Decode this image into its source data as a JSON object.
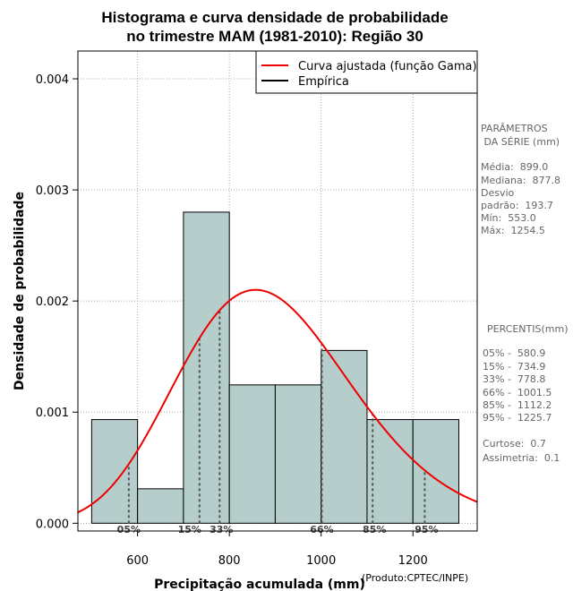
{
  "chart_data": {
    "type": "histogram",
    "title_lines": [
      "Histograma e curva densidade de probabilidade",
      "no trimestre MAM (1981-2010): Região 30"
    ],
    "xlabel": "Precipitação acumulada (mm)",
    "ylabel": "Densidade de probabilidade",
    "credit": "(Produto:CPTEC/INPE)",
    "xlim": [
      470,
      1340
    ],
    "ylim": [
      -7e-05,
      0.00425
    ],
    "x_ticks": [
      {
        "value": 600,
        "label": "600"
      },
      {
        "value": 800,
        "label": "800"
      },
      {
        "value": 1000,
        "label": "1000"
      },
      {
        "value": 1200,
        "label": "1200"
      }
    ],
    "y_ticks": [
      {
        "value": 0.0,
        "label": "0.000"
      },
      {
        "value": 0.001,
        "label": "0.001"
      },
      {
        "value": 0.002,
        "label": "0.002"
      },
      {
        "value": 0.003,
        "label": "0.003"
      },
      {
        "value": 0.004,
        "label": "0.004"
      }
    ],
    "grid": true,
    "bars": [
      {
        "x0": 500,
        "x1": 600,
        "density": 0.000933
      },
      {
        "x0": 600,
        "x1": 700,
        "density": 0.00031
      },
      {
        "x0": 700,
        "x1": 800,
        "density": 0.0028
      },
      {
        "x0": 800,
        "x1": 900,
        "density": 0.001245
      },
      {
        "x0": 900,
        "x1": 1000,
        "density": 0.001245
      },
      {
        "x0": 1000,
        "x1": 1100,
        "density": 0.001555
      },
      {
        "x0": 1100,
        "x1": 1200,
        "density": 0.000933
      },
      {
        "x0": 1200,
        "x1": 1300,
        "density": 0.000933
      }
    ],
    "curve": {
      "name": "Curva ajustada (função Gama)",
      "color": "#ee0000",
      "distribution": "gamma",
      "mean": 899.0,
      "sd": 193.7
    },
    "empirical": {
      "name": "Empírica",
      "color": "#000000"
    },
    "percentiles": [
      {
        "label": "05%",
        "value": 580.9
      },
      {
        "label": "15%",
        "value": 734.9
      },
      {
        "label": "33%",
        "value": 778.8
      },
      {
        "label": "66%",
        "value": 1001.5
      },
      {
        "label": "85%",
        "value": 1112.2
      },
      {
        "label": "95%",
        "value": 1225.7
      }
    ],
    "legend": {
      "position": "top-right"
    },
    "colors": {
      "bar_fill": "#b5cdcb",
      "bar_stroke": "#000000",
      "grid": "#aaaaaa",
      "pct_line": "#555555"
    }
  },
  "side_panel": {
    "params_title": [
      "PARÂMETROS",
      " DA SÉRIE (mm)"
    ],
    "params": [
      "Média:  899.0",
      "Mediana:  877.8",
      "Desvio",
      "padrão:  193.7",
      "Mín:  553.0",
      "Máx:  1254.5"
    ],
    "percentis_title": "PERCENTIS(mm)",
    "percentis": [
      "05% -  580.9",
      "15% -  734.9",
      "33% -  778.8",
      "66% -  1001.5",
      "85% -  1112.2",
      "95% -  1225.7"
    ],
    "stats": [
      "Curtose:  0.7",
      "Assimetria:  0.1"
    ]
  }
}
